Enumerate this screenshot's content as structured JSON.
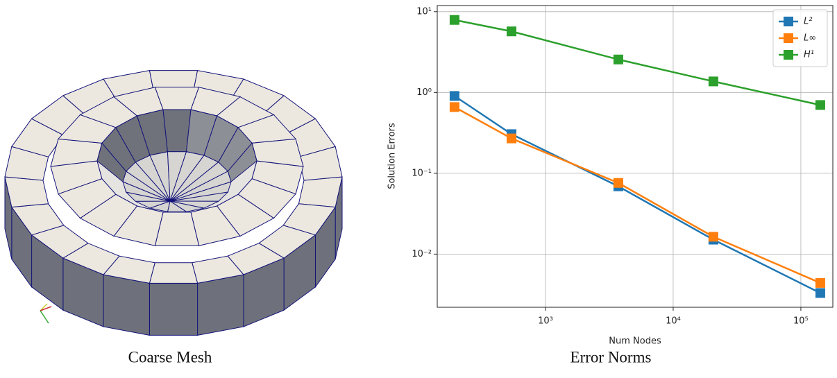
{
  "captions": [
    "Coarse Mesh",
    "Error Norms"
  ],
  "chart_data": {
    "type": "line",
    "xlabel": "Num Nodes",
    "ylabel": "Solution Errors",
    "x": [
      194,
      542,
      3720,
      20650,
      142000
    ],
    "series": [
      {
        "name": "L²",
        "color": "#1f77b4",
        "values": [
          0.905,
          0.305,
          0.069,
          0.0151,
          0.0033
        ]
      },
      {
        "name": "L∞",
        "color": "#ff7f0e",
        "values": [
          0.66,
          0.27,
          0.076,
          0.0164,
          0.0044
        ]
      },
      {
        "name": "H¹",
        "color": "#2ca02c",
        "values": [
          7.9,
          5.7,
          2.56,
          1.37,
          0.7
        ]
      }
    ],
    "xlog": true,
    "ylog": true,
    "xlim": [
      142,
      178000
    ],
    "ylim": [
      0.0022,
      11.9
    ],
    "xticks": [
      {
        "value": 1000,
        "label": "10³"
      },
      {
        "value": 10000,
        "label": "10⁴"
      },
      {
        "value": 100000,
        "label": "10⁵"
      }
    ],
    "yticks": [
      {
        "value": 0.01,
        "label": "10⁻²"
      },
      {
        "value": 0.1,
        "label": "10⁻¹"
      },
      {
        "value": 1,
        "label": "10⁰"
      },
      {
        "value": 10,
        "label": "10¹"
      }
    ],
    "grid": true,
    "legend": "upper right"
  }
}
